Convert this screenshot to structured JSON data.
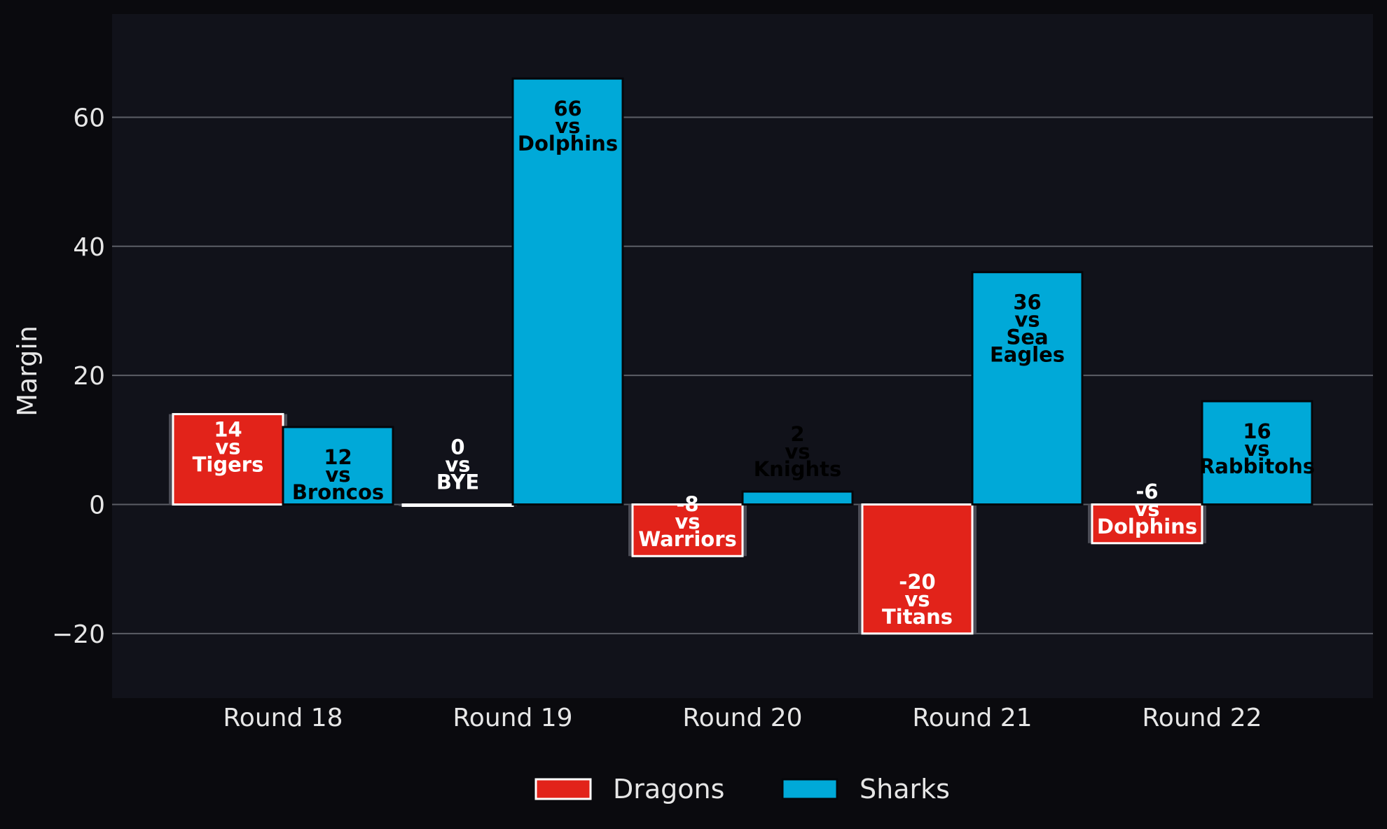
{
  "chart_data": {
    "type": "bar",
    "title": "",
    "xlabel": "",
    "ylabel": "Margin",
    "ylim": [
      -30,
      76
    ],
    "yticks": [
      -20,
      0,
      20,
      40,
      60
    ],
    "ytick_labels": [
      "−20",
      "0",
      "20",
      "40",
      "60"
    ],
    "grid": "horizontal",
    "legend_position": "bottom-center",
    "categories": [
      "Round 18",
      "Round 19",
      "Round 20",
      "Round 21",
      "Round 22"
    ],
    "series": [
      {
        "name": "Dragons",
        "color": "#e2231a",
        "values": [
          14,
          0,
          -8,
          -20,
          -6
        ],
        "opponents": [
          "Tigers",
          "BYE",
          "Warriors",
          "Titans",
          "Dolphins"
        ],
        "labels": [
          [
            "14",
            "vs",
            "Tigers"
          ],
          [
            "0",
            "vs",
            "BYE"
          ],
          [
            "-8",
            "vs",
            "Warriors"
          ],
          [
            "-20",
            "vs",
            "Titans"
          ],
          [
            "-6",
            "vs",
            "Dolphins"
          ]
        ]
      },
      {
        "name": "Sharks",
        "color": "#00a9d8",
        "values": [
          12,
          66,
          2,
          36,
          16
        ],
        "opponents": [
          "Broncos",
          "Dolphins",
          "Knights",
          "Sea Eagles",
          "Rabbitohs"
        ],
        "labels": [
          [
            "12",
            "vs",
            "Broncos"
          ],
          [
            "66",
            "vs",
            "Dolphins"
          ],
          [
            "2",
            "vs",
            "Knights"
          ],
          [
            "36",
            "vs",
            "Sea",
            "Eagles"
          ],
          [
            "16",
            "vs",
            "Rabbitohs"
          ]
        ]
      }
    ]
  }
}
